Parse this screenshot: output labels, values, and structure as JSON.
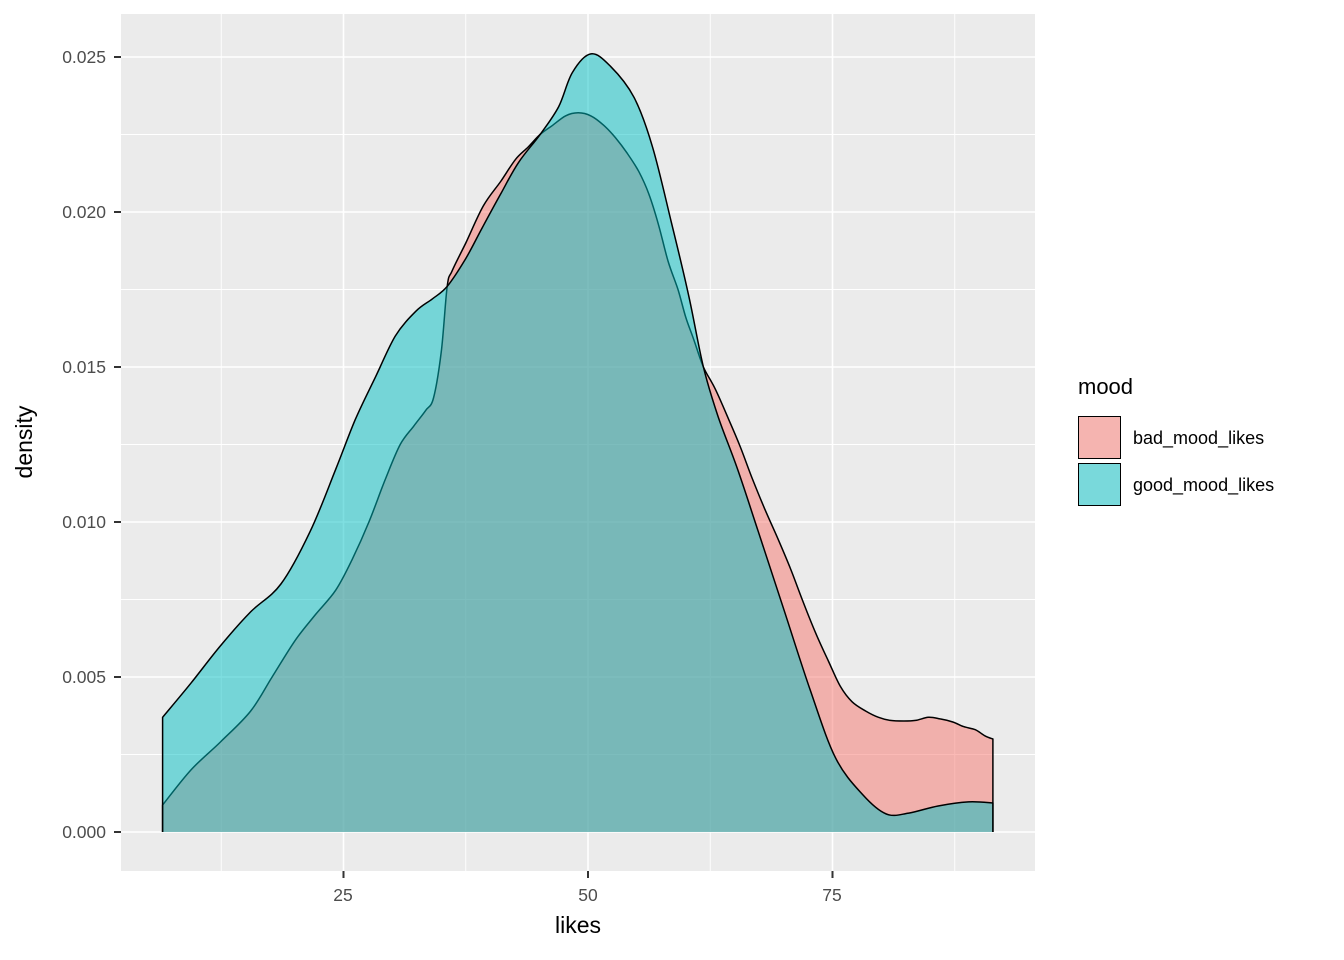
{
  "axes": {
    "x": {
      "title": "likes",
      "tick_labels": [
        "25",
        "50",
        "75"
      ]
    },
    "y": {
      "title": "density",
      "tick_labels": [
        "0.025",
        "0.020",
        "0.015",
        "0.010",
        "0.005",
        "0.000"
      ]
    }
  },
  "legend": {
    "title": "mood"
  },
  "colors": {
    "panel_bg": "#EBEBEB",
    "grid": "#FFFFFF",
    "tick_label": "#4D4D4D",
    "tick_mark": "#333333",
    "curve_outline": "#000000",
    "legend_key_bg": "#F2F2F2",
    "fill_alpha": 0.5
  },
  "chart_data": {
    "type": "area",
    "subtype": "kernel-density",
    "title": "",
    "xlabel": "likes",
    "ylabel": "density",
    "xlim": [
      2.3,
      95.7
    ],
    "ylim": [
      -0.0013,
      0.0264
    ],
    "grid": "major+minor",
    "legend_position": "right",
    "x_major_ticks": [
      25,
      50,
      75
    ],
    "x_minor_ticks": [
      12.5,
      37.5,
      62.5,
      87.5
    ],
    "y_major_ticks": [
      0,
      0.005,
      0.01,
      0.015,
      0.02,
      0.025
    ],
    "y_minor_ticks": [
      0.0025,
      0.0075,
      0.0125,
      0.0175,
      0.0225
    ],
    "series": [
      {
        "name": "bad_mood_likes",
        "color": "#F8766D",
        "points": [
          [
            6.5,
            0.00087
          ],
          [
            9.4,
            0.002
          ],
          [
            12.4,
            0.0029
          ],
          [
            15.5,
            0.0039
          ],
          [
            17.7,
            0.005
          ],
          [
            20.1,
            0.0062
          ],
          [
            22.1,
            0.007
          ],
          [
            24.2,
            0.0078
          ],
          [
            25.9,
            0.0088
          ],
          [
            27.6,
            0.01
          ],
          [
            29.3,
            0.0114
          ],
          [
            30.8,
            0.0125
          ],
          [
            32.2,
            0.0131
          ],
          [
            33.4,
            0.0136
          ],
          [
            34.2,
            0.014
          ],
          [
            35.0,
            0.0155
          ],
          [
            35.6,
            0.0176
          ],
          [
            36.1,
            0.0181
          ],
          [
            37.5,
            0.019
          ],
          [
            39.3,
            0.0202
          ],
          [
            41.1,
            0.021
          ],
          [
            42.6,
            0.0217
          ],
          [
            43.9,
            0.0221
          ],
          [
            45.1,
            0.0225
          ],
          [
            46.4,
            0.0228
          ],
          [
            47.7,
            0.0231
          ],
          [
            49.0,
            0.0232
          ],
          [
            50.3,
            0.0231
          ],
          [
            51.6,
            0.0228
          ],
          [
            52.8,
            0.0224
          ],
          [
            54.0,
            0.0219
          ],
          [
            55.2,
            0.0213
          ],
          [
            56.2,
            0.0206
          ],
          [
            57.2,
            0.0196
          ],
          [
            58.2,
            0.0184
          ],
          [
            59.2,
            0.0175
          ],
          [
            60.0,
            0.0166
          ],
          [
            60.8,
            0.0159
          ],
          [
            61.8,
            0.015
          ],
          [
            63.0,
            0.0143
          ],
          [
            64.4,
            0.0133
          ],
          [
            65.6,
            0.0124
          ],
          [
            66.8,
            0.0114
          ],
          [
            68.1,
            0.0104
          ],
          [
            69.5,
            0.0094
          ],
          [
            70.7,
            0.0085
          ],
          [
            71.9,
            0.0075
          ],
          [
            73.3,
            0.0064
          ],
          [
            74.6,
            0.0055
          ],
          [
            75.8,
            0.0047
          ],
          [
            77.0,
            0.0042
          ],
          [
            78.4,
            0.0039
          ],
          [
            79.7,
            0.0037
          ],
          [
            80.9,
            0.0036
          ],
          [
            82.3,
            0.00358
          ],
          [
            83.5,
            0.0036
          ],
          [
            84.8,
            0.0037
          ],
          [
            86.0,
            0.00365
          ],
          [
            87.3,
            0.00355
          ],
          [
            88.4,
            0.0034
          ],
          [
            89.6,
            0.0033
          ],
          [
            90.6,
            0.0031
          ],
          [
            91.4,
            0.003
          ]
        ]
      },
      {
        "name": "good_mood_likes",
        "color": "#00BFC4",
        "points": [
          [
            6.5,
            0.0037
          ],
          [
            9.4,
            0.0048
          ],
          [
            12.4,
            0.006
          ],
          [
            15.5,
            0.0071
          ],
          [
            18.6,
            0.008
          ],
          [
            21.6,
            0.0097
          ],
          [
            24.2,
            0.0117
          ],
          [
            26.2,
            0.0133
          ],
          [
            28.3,
            0.0147
          ],
          [
            30.3,
            0.016
          ],
          [
            32.4,
            0.0168
          ],
          [
            34.1,
            0.0172
          ],
          [
            35.6,
            0.0176
          ],
          [
            37.5,
            0.0185
          ],
          [
            39.2,
            0.0195
          ],
          [
            41.1,
            0.0206
          ],
          [
            42.9,
            0.0216
          ],
          [
            45.1,
            0.0225
          ],
          [
            47.0,
            0.0234
          ],
          [
            48.4,
            0.0245
          ],
          [
            50.3,
            0.0251
          ],
          [
            52.3,
            0.0247
          ],
          [
            54.7,
            0.0237
          ],
          [
            56.6,
            0.0221
          ],
          [
            58.5,
            0.0197
          ],
          [
            60.3,
            0.0173
          ],
          [
            61.8,
            0.015
          ],
          [
            63.3,
            0.0134
          ],
          [
            65.3,
            0.0117
          ],
          [
            67.4,
            0.0097
          ],
          [
            69.9,
            0.0073
          ],
          [
            72.7,
            0.0046
          ],
          [
            75.3,
            0.0024
          ],
          [
            78.1,
            0.0012
          ],
          [
            80.5,
            0.00058
          ],
          [
            82.8,
            0.00061
          ],
          [
            85.8,
            0.00084
          ],
          [
            88.9,
            0.00097
          ],
          [
            91.4,
            0.00094
          ]
        ]
      }
    ]
  }
}
